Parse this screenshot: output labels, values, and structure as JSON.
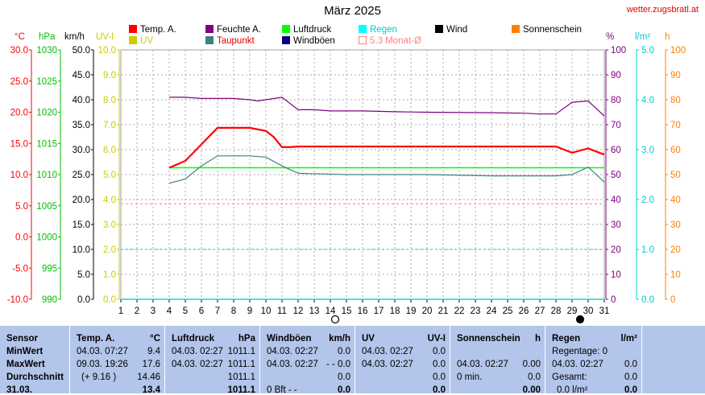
{
  "title": "März 2025",
  "site": "wetter.zugsbratl.at",
  "legend": [
    {
      "label": "Temp. A.",
      "color": "#ff0000"
    },
    {
      "label": "Feuchte A.",
      "color": "#800080"
    },
    {
      "label": "Luftdruck",
      "color": "#00ff00"
    },
    {
      "label": "Regen",
      "color": "#00ffff"
    },
    {
      "label": "Wind",
      "color": "#000000"
    },
    {
      "label": "Sonnenschein",
      "color": "#ff8000"
    },
    {
      "label": "UV",
      "color": "#cccc00"
    },
    {
      "label": "Taupunkt",
      "color": "#408080"
    },
    {
      "label": "Windböen",
      "color": "#000080"
    },
    {
      "label": "5.3 Monat-Ø",
      "color": "#ffffff"
    }
  ],
  "axis_units": {
    "temp": "°C",
    "pressure": "hPa",
    "wind": "km/h",
    "uv": "UV-I",
    "humidity": "%",
    "rain": "l/m²",
    "sun": "h"
  },
  "axis_colors": {
    "temp": "#ff0000",
    "pressure": "#00c000",
    "wind": "#000000",
    "uv": "#cccc00",
    "humidity": "#800080",
    "rain": "#00cccc",
    "sun": "#ff8000"
  },
  "chart_data": {
    "type": "line",
    "x": [
      1,
      2,
      3,
      4,
      5,
      6,
      7,
      8,
      9,
      10,
      11,
      12,
      13,
      14,
      15,
      16,
      17,
      18,
      19,
      20,
      21,
      22,
      23,
      24,
      25,
      26,
      27,
      28,
      29,
      30,
      31
    ],
    "xlim": [
      1,
      31
    ],
    "axes": {
      "temp": {
        "ticks": [
          "30.0",
          "25.0",
          "20.0",
          "15.0",
          "10.0",
          "5.0",
          "0.0",
          "-5.0",
          "-10.0"
        ]
      },
      "pressure": {
        "ticks": [
          "1030",
          "1025",
          "1020",
          "1015",
          "1010",
          "1005",
          "1000",
          "995",
          "990"
        ]
      },
      "wind": {
        "ticks": [
          "50.0",
          "45.0",
          "40.0",
          "35.0",
          "30.0",
          "25.0",
          "20.0",
          "15.0",
          "10.0",
          "5.0",
          "0.0"
        ]
      },
      "uv": {
        "ticks": [
          "10.0",
          "9.0",
          "8.0",
          "7.0",
          "6.0",
          "5.0",
          "4.0",
          "3.0",
          "2.0",
          "1.0",
          "0.0"
        ]
      },
      "humidity": {
        "ticks": [
          "100",
          "90",
          "80",
          "70",
          "60",
          "50",
          "40",
          "30",
          "20",
          "10",
          "0"
        ]
      },
      "rain": {
        "ticks": [
          "5.0",
          "4.0",
          "3.0",
          "2.0",
          "1.0",
          "0.0"
        ]
      },
      "sun": {
        "ticks": [
          "100",
          "90",
          "80",
          "70",
          "60",
          "50",
          "40",
          "30",
          "20",
          "10",
          "0"
        ]
      }
    },
    "series": [
      {
        "name": "Temp. A.",
        "color": "#ff0000",
        "scale": "temp",
        "ylim": [
          -10,
          30
        ],
        "points": [
          [
            4,
            11.1
          ],
          [
            5,
            12.2
          ],
          [
            7,
            17.5
          ],
          [
            8,
            17.5
          ],
          [
            9,
            17.5
          ],
          [
            10,
            17.0
          ],
          [
            10.5,
            16.0
          ],
          [
            11,
            14.4
          ],
          [
            11.5,
            14.4
          ],
          [
            12,
            14.5
          ],
          [
            28,
            14.5
          ],
          [
            29,
            13.5
          ],
          [
            30,
            14.2
          ],
          [
            31,
            13.2
          ]
        ]
      },
      {
        "name": "Feuchte A.",
        "color": "#800080",
        "scale": "humidity",
        "ylim": [
          0,
          100
        ],
        "points": [
          [
            4,
            81
          ],
          [
            5,
            81
          ],
          [
            6,
            80.5
          ],
          [
            7,
            80.5
          ],
          [
            8,
            80.5
          ],
          [
            9,
            80
          ],
          [
            9.5,
            79.5
          ],
          [
            10,
            80
          ],
          [
            11,
            81
          ],
          [
            12,
            76
          ],
          [
            13,
            76
          ],
          [
            14,
            75.5
          ],
          [
            16,
            75.5
          ],
          [
            18,
            75.2
          ],
          [
            20,
            75
          ],
          [
            24,
            74.8
          ],
          [
            26,
            74.6
          ],
          [
            27,
            74.3
          ],
          [
            28,
            74.3
          ],
          [
            29,
            79
          ],
          [
            30,
            79.5
          ],
          [
            31,
            73.5
          ]
        ]
      },
      {
        "name": "Luftdruck",
        "color": "#00ff00",
        "scale": "pressure",
        "ylim": [
          990,
          1030
        ],
        "points": [
          [
            4,
            1011.1
          ],
          [
            31,
            1011.1
          ]
        ]
      },
      {
        "name": "Taupunkt",
        "color": "#408080",
        "scale": "temp",
        "ylim": [
          -10,
          30
        ],
        "points": [
          [
            4,
            8.6
          ],
          [
            5,
            9.3
          ],
          [
            6,
            11.4
          ],
          [
            7,
            13.0
          ],
          [
            8,
            13.0
          ],
          [
            9,
            13.0
          ],
          [
            10,
            12.8
          ],
          [
            11,
            11.4
          ],
          [
            12,
            10.2
          ],
          [
            15,
            10.0
          ],
          [
            20,
            10.0
          ],
          [
            24,
            9.8
          ],
          [
            28,
            9.8
          ],
          [
            29,
            10.0
          ],
          [
            30,
            11.2
          ],
          [
            31,
            8.8
          ]
        ]
      },
      {
        "name": "Regen",
        "color": "#00ffff",
        "scale": "rain",
        "ylim": [
          0,
          5
        ],
        "points": [
          [
            1,
            0
          ],
          [
            31,
            0
          ]
        ]
      },
      {
        "name": "Wind",
        "color": "#000000",
        "scale": "wind",
        "ylim": [
          0,
          50
        ],
        "points": [
          [
            1,
            0
          ],
          [
            31,
            0
          ]
        ]
      },
      {
        "name": "Sonnenschein",
        "color": "#ff8000",
        "scale": "sun",
        "ylim": [
          0,
          100
        ],
        "points": [
          [
            1,
            0
          ],
          [
            31,
            0
          ]
        ]
      }
    ],
    "reference_lines": [
      {
        "scale": "temp",
        "value": 5.3,
        "color": "#ff8080",
        "style": "dashed"
      },
      {
        "scale": "rain",
        "value": 1.0,
        "color": "#00cccc",
        "style": "dashed"
      }
    ],
    "moon_phases": [
      {
        "day": 14.3,
        "phase": "full"
      },
      {
        "day": 29.5,
        "phase": "new"
      }
    ]
  },
  "stats": {
    "sensor": {
      "header": "Sensor",
      "rows": [
        "MinWert",
        "MaxWert",
        "Durchschnitt",
        "31.03."
      ]
    },
    "temp": {
      "header": "Temp. A.",
      "unit": "°C",
      "rows": [
        [
          "04.03.  07:27",
          "9.4"
        ],
        [
          "09.03.  19:26",
          "17.6"
        ],
        [
          "(+ 9.16 )",
          "14.46"
        ],
        [
          "",
          "13.4"
        ]
      ]
    },
    "pressure": {
      "header": "Luftdruck",
      "unit": "hPa",
      "rows": [
        [
          "04.03.  02:27",
          "1011.1"
        ],
        [
          "04.03.  02:27",
          "1011.1"
        ],
        [
          "",
          "1011.1"
        ],
        [
          "",
          "1011.1"
        ]
      ]
    },
    "wind": {
      "header": "Windböen",
      "unit": "km/h",
      "rows": [
        [
          "04.03.  02:27",
          "0.0"
        ],
        [
          "04.03.  02:27",
          "- - 0.0"
        ],
        [
          "",
          "0.0"
        ],
        [
          "0 Bft - -",
          "0.0"
        ]
      ]
    },
    "uv": {
      "header": "UV",
      "unit": "UV-I",
      "rows": [
        [
          "04.03.  02:27",
          "0.0"
        ],
        [
          "04.03.  02:27",
          "0.0"
        ],
        [
          "",
          "0.0"
        ],
        [
          "",
          "0.0"
        ]
      ]
    },
    "sun": {
      "header": "Sonnenschein",
      "unit": "h",
      "rows": [
        [
          "",
          ""
        ],
        [
          "04.03.  02:27",
          "0.00"
        ],
        [
          "0 min.",
          "0.0"
        ],
        [
          "",
          "0.00"
        ]
      ]
    },
    "rain": {
      "header": "Regen",
      "unit": "l/m²",
      "rows": [
        [
          "Regentage: 0",
          ""
        ],
        [
          "04.03.  02:27",
          "0.0"
        ],
        [
          "Gesamt:",
          "0.0"
        ],
        [
          "0.0 l/m²",
          "0.0"
        ]
      ]
    }
  }
}
